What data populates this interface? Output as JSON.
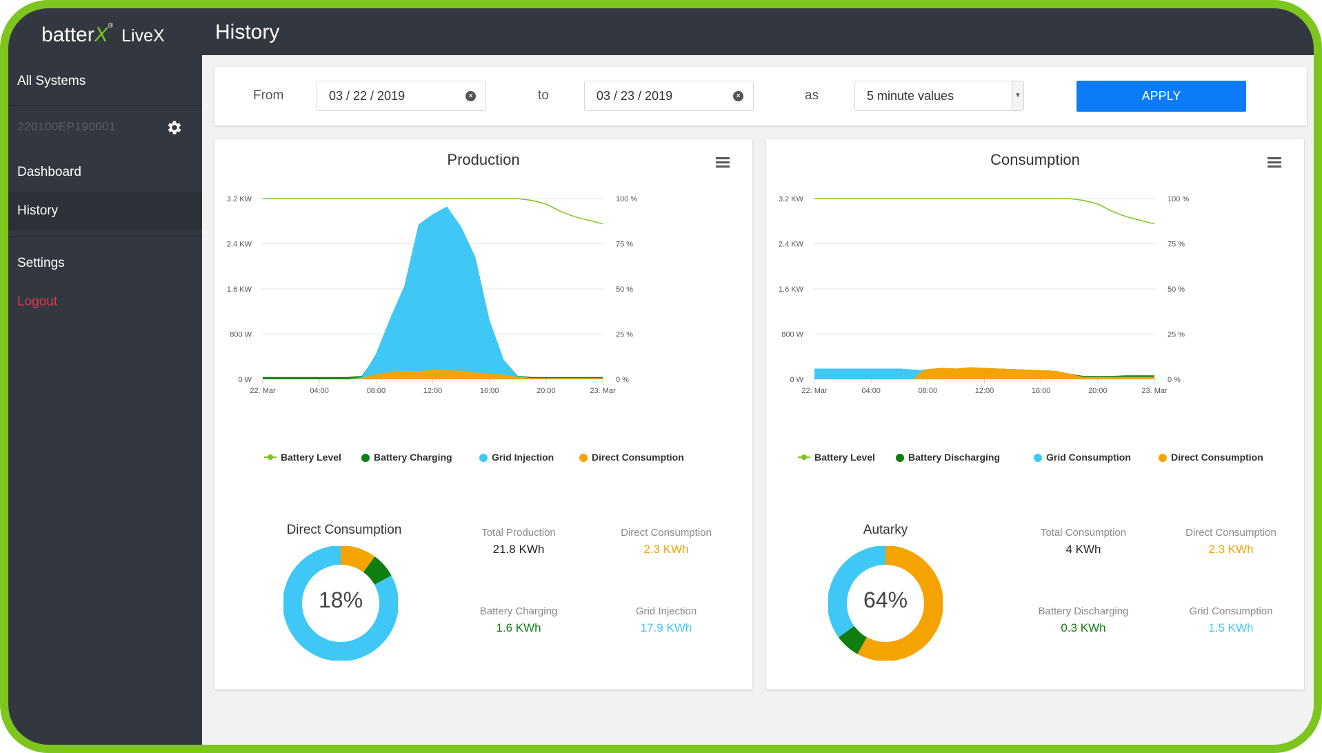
{
  "app": {
    "logo_batter": "batter",
    "logo_x": "X",
    "logo_reg": "®",
    "logo_livex": "LiveX",
    "page_title": "History"
  },
  "sidebar": {
    "all_systems": "All Systems",
    "system_id": "220100EP190001",
    "dashboard": "Dashboard",
    "history": "History",
    "settings": "Settings",
    "logout": "Logout",
    "active_item": "History"
  },
  "filters": {
    "from_label": "From",
    "from_value": "03 / 22 / 2019",
    "to_label": "to",
    "to_value": "03 / 23 / 2019",
    "as_label": "as",
    "interval_value": "5 minute values",
    "apply_label": "APPLY"
  },
  "colors": {
    "battery_level": "#7cc61e",
    "battery": "#0f7d0f",
    "grid": "#3fc8f5",
    "direct": "#f5a300",
    "accent": "#0d7bf7",
    "logout": "#e0364c"
  },
  "production": {
    "title": "Production",
    "y_left_ticks": [
      "3.2 KW",
      "2.4 KW",
      "1.6 KW",
      "800 W",
      "0 W"
    ],
    "y_right_ticks": [
      "100 %",
      "75 %",
      "50 %",
      "25 %",
      "0 %"
    ],
    "x_ticks": [
      "22. Mar",
      "04:00",
      "08:00",
      "12:00",
      "16:00",
      "20:00",
      "23. Mar"
    ],
    "legend": [
      "Battery Level",
      "Battery Charging",
      "Grid Injection",
      "Direct Consumption"
    ],
    "donut_title": "Direct Consumption",
    "donut_percent": "18%",
    "donut_segments": {
      "direct": 0.1,
      "battery": 0.07,
      "grid": 0.83
    },
    "stats": [
      {
        "label": "Total Production",
        "value": "21.8 KWh"
      },
      {
        "label": "Direct Consumption",
        "value": "2.3 KWh"
      },
      {
        "label": "Battery Charging",
        "value": "1.6 KWh"
      },
      {
        "label": "Grid Injection",
        "value": "17.9 KWh"
      }
    ]
  },
  "consumption": {
    "title": "Consumption",
    "y_left_ticks": [
      "3.2 KW",
      "2.4 KW",
      "1.6 KW",
      "800 W",
      "0 W"
    ],
    "y_right_ticks": [
      "100 %",
      "75 %",
      "50 %",
      "25 %",
      "0 %"
    ],
    "x_ticks": [
      "22. Mar",
      "04:00",
      "08:00",
      "12:00",
      "16:00",
      "20:00",
      "23. Mar"
    ],
    "legend": [
      "Battery Level",
      "Battery Discharging",
      "Grid Consumption",
      "Direct Consumption"
    ],
    "donut_title": "Autarky",
    "donut_percent": "64%",
    "donut_segments": {
      "direct": 0.58,
      "battery": 0.07,
      "grid": 0.35
    },
    "stats": [
      {
        "label": "Total Consumption",
        "value": "4 KWh"
      },
      {
        "label": "Direct Consumption",
        "value": "2.3 KWh"
      },
      {
        "label": "Battery Discharging",
        "value": "0.3 KWh"
      },
      {
        "label": "Grid Consumption",
        "value": "1.5 KWh"
      }
    ]
  },
  "chart_data": [
    {
      "type": "area",
      "title": "Production",
      "ylabel_left": "",
      "ylabel_right": "",
      "ylim": [
        0,
        3200
      ],
      "y2lim": [
        0,
        100
      ],
      "x_hours": [
        0,
        1,
        2,
        3,
        4,
        5,
        6,
        7,
        7.5,
        8,
        9,
        10,
        11,
        12,
        13,
        14,
        15,
        16,
        17,
        18,
        19,
        20,
        21,
        22,
        23,
        24
      ],
      "series": [
        {
          "name": "Battery Level",
          "axis": "right",
          "values": [
            100,
            100,
            100,
            100,
            100,
            100,
            100,
            100,
            100,
            100,
            100,
            100,
            100,
            100,
            100,
            100,
            100,
            100,
            100,
            100,
            99,
            97,
            93,
            90,
            88,
            86
          ]
        },
        {
          "name": "Battery Charging",
          "values": [
            40,
            40,
            40,
            40,
            40,
            40,
            40,
            60,
            200,
            400,
            1000,
            1600,
            2650,
            2800,
            2950,
            2600,
            2100,
            1000,
            300,
            60,
            40,
            40,
            40,
            40,
            40,
            40
          ]
        },
        {
          "name": "Grid Injection",
          "values": [
            0,
            0,
            0,
            0,
            0,
            0,
            0,
            20,
            180,
            360,
            950,
            1500,
            2600,
            2750,
            2900,
            2550,
            2050,
            950,
            270,
            10,
            0,
            0,
            0,
            0,
            0,
            0
          ]
        },
        {
          "name": "Direct Consumption",
          "values": [
            0,
            0,
            0,
            0,
            0,
            0,
            0,
            20,
            60,
            90,
            130,
            150,
            140,
            170,
            160,
            150,
            120,
            100,
            80,
            40,
            20,
            20,
            20,
            20,
            20,
            20
          ]
        }
      ]
    },
    {
      "type": "area",
      "title": "Consumption",
      "ylim": [
        0,
        3200
      ],
      "y2lim": [
        0,
        100
      ],
      "x_hours": [
        0,
        1,
        2,
        3,
        4,
        5,
        6,
        7,
        7.5,
        8,
        9,
        10,
        11,
        12,
        13,
        14,
        15,
        16,
        17,
        18,
        19,
        20,
        21,
        22,
        23,
        24
      ],
      "series": [
        {
          "name": "Battery Level",
          "axis": "right",
          "values": [
            100,
            100,
            100,
            100,
            100,
            100,
            100,
            100,
            100,
            100,
            100,
            100,
            100,
            100,
            100,
            100,
            100,
            100,
            100,
            100,
            99,
            97,
            93,
            90,
            88,
            86
          ]
        },
        {
          "name": "Battery Discharging",
          "values": [
            0,
            0,
            0,
            0,
            0,
            0,
            0,
            0,
            0,
            0,
            0,
            0,
            0,
            0,
            0,
            0,
            0,
            0,
            0,
            10,
            60,
            60,
            60,
            70,
            70,
            70
          ]
        },
        {
          "name": "Grid Consumption",
          "values": [
            190,
            190,
            190,
            190,
            190,
            190,
            190,
            170,
            30,
            0,
            0,
            0,
            0,
            0,
            0,
            0,
            0,
            0,
            0,
            0,
            0,
            0,
            0,
            0,
            0,
            0
          ]
        },
        {
          "name": "Direct Consumption",
          "values": [
            0,
            0,
            0,
            0,
            0,
            0,
            0,
            0,
            130,
            180,
            200,
            190,
            210,
            200,
            190,
            180,
            170,
            160,
            150,
            100,
            40,
            40,
            40,
            40,
            40,
            40
          ]
        }
      ]
    }
  ]
}
